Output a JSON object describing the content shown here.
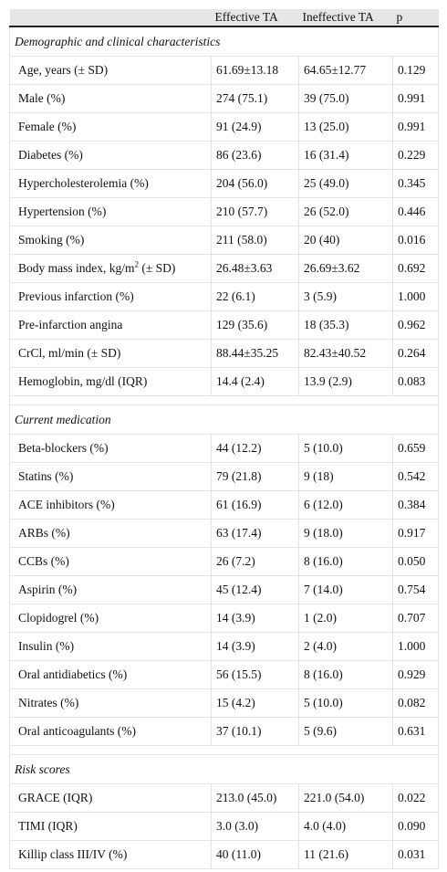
{
  "header": [
    "",
    "Effective TA",
    "Ineffective TA",
    "p"
  ],
  "sections": [
    {
      "title": "Demographic and clinical characteristics",
      "rows": [
        {
          "label": "Age, years (± SD)",
          "effective": "61.69±13.18",
          "ineffective": "64.65±12.77",
          "p": "0.129"
        },
        {
          "label": "Male (%)",
          "effective": "274 (75.1)",
          "ineffective": "39 (75.0)",
          "p": "0.991"
        },
        {
          "label": "Female (%)",
          "effective": "91 (24.9)",
          "ineffective": "13 (25.0)",
          "p": "0.991"
        },
        {
          "label": "Diabetes (%)",
          "effective": "86 (23.6)",
          "ineffective": "16 (31.4)",
          "p": "0.229"
        },
        {
          "label": "Hypercholesterolemia (%)",
          "effective": "204 (56.0)",
          "ineffective": "25 (49.0)",
          "p": "0.345"
        },
        {
          "label": "Hypertension (%)",
          "effective": "210 (57.7)",
          "ineffective": "26 (52.0)",
          "p": "0.446"
        },
        {
          "label": "Smoking (%)",
          "effective": "211 (58.0)",
          "ineffective": "20 (40)",
          "p": "0.016"
        },
        {
          "label": "Body mass index, kg/m",
          "label_sup": "2",
          "label_after": " (± SD)",
          "effective": "26.48±3.63",
          "ineffective": "26.69±3.62",
          "p": "0.692"
        },
        {
          "label": "Previous infarction (%)",
          "effective": "22 (6.1)",
          "ineffective": "3 (5.9)",
          "p": "1.000"
        },
        {
          "label": "Pre-infarction angina",
          "effective": "129 (35.6)",
          "ineffective": "18 (35.3)",
          "p": "0.962"
        },
        {
          "label": "CrCl, ml/min (± SD)",
          "effective": "88.44±35.25",
          "ineffective": "82.43±40.52",
          "p": "0.264"
        },
        {
          "label": "Hemoglobin, mg/dl (IQR)",
          "effective": "14.4 (2.4)",
          "ineffective": "13.9 (2.9)",
          "p": "0.083"
        }
      ]
    },
    {
      "title": "Current medication",
      "rows": [
        {
          "label": "Beta-blockers (%)",
          "effective": "44 (12.2)",
          "ineffective": "5 (10.0)",
          "p": "0.659"
        },
        {
          "label": "Statins (%)",
          "effective": "79 (21.8)",
          "ineffective": "9 (18)",
          "p": "0.542"
        },
        {
          "label": "ACE inhibitors (%)",
          "effective": "61 (16.9)",
          "ineffective": "6 (12.0)",
          "p": "0.384"
        },
        {
          "label": "ARBs (%)",
          "effective": "63 (17.4)",
          "ineffective": "9 (18.0)",
          "p": "0.917"
        },
        {
          "label": "CCBs (%)",
          "effective": "26 (7.2)",
          "ineffective": "8 (16.0)",
          "p": "0.050"
        },
        {
          "label": "Aspirin (%)",
          "effective": "45 (12.4)",
          "ineffective": "7 (14.0)",
          "p": "0.754"
        },
        {
          "label": "Clopidogrel (%)",
          "effective": "14 (3.9)",
          "ineffective": "1 (2.0)",
          "p": "0.707"
        },
        {
          "label": "Insulin (%)",
          "effective": "14 (3.9)",
          "ineffective": "2 (4.0)",
          "p": "1.000"
        },
        {
          "label": "Oral antidiabetics (%)",
          "effective": "56 (15.5)",
          "ineffective": "8 (16.0)",
          "p": "0.929"
        },
        {
          "label": "Nitrates (%)",
          "effective": "15 (4.2)",
          "ineffective": "5 (10.0)",
          "p": "0.082"
        },
        {
          "label": "Oral anticoagulants (%)",
          "effective": "37 (10.1)",
          "ineffective": "5 (9.6)",
          "p": "0.631"
        }
      ]
    },
    {
      "title": "Risk scores",
      "rows": [
        {
          "label": "GRACE (IQR)",
          "effective": "213.0 (45.0)",
          "ineffective": "221.0 (54.0)",
          "p": "0.022"
        },
        {
          "label": "TIMI (IQR)",
          "effective": "3.0 (3.0)",
          "ineffective": "4.0 (4.0)",
          "p": "0.090"
        },
        {
          "label": "Killip class III/IV (%)",
          "effective": "40 (11.0)",
          "ineffective": "11 (21.6)",
          "p": "0.031"
        }
      ]
    }
  ]
}
